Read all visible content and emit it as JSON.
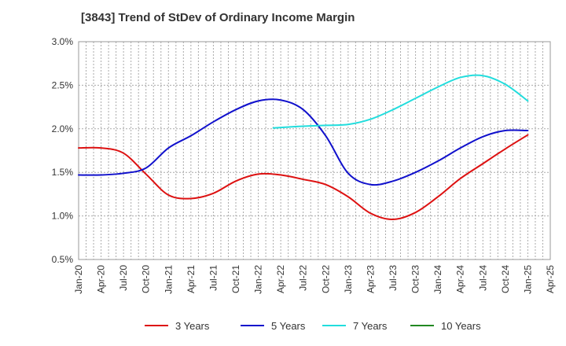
{
  "chart_data": {
    "type": "line",
    "title": "[3843]  Trend of StDev of Ordinary Income Margin",
    "xlabel": "",
    "ylabel": "",
    "x_ticks": [
      "Jan-20",
      "Apr-20",
      "Jul-20",
      "Oct-20",
      "Jan-21",
      "Apr-21",
      "Jul-21",
      "Oct-21",
      "Jan-22",
      "Apr-22",
      "Jul-22",
      "Oct-22",
      "Jan-23",
      "Apr-23",
      "Jul-23",
      "Oct-23",
      "Jan-24",
      "Apr-24",
      "Jul-24",
      "Oct-24",
      "Jan-25",
      "Apr-25"
    ],
    "y_ticks": [
      "0.5%",
      "1.0%",
      "1.5%",
      "2.0%",
      "2.5%",
      "3.0%"
    ],
    "ylim": [
      0.5,
      3.0
    ],
    "grid": true,
    "legend_position": "bottom",
    "series": [
      {
        "name": "3 Years",
        "color": "#dd1111",
        "x": [
          "Jan-20",
          "Apr-20",
          "Jul-20",
          "Oct-20",
          "Jan-21",
          "Apr-21",
          "Jul-21",
          "Oct-21",
          "Jan-22",
          "Apr-22",
          "Jul-22",
          "Oct-22",
          "Jan-23",
          "Apr-23",
          "Jul-23",
          "Oct-23",
          "Jan-24",
          "Apr-24",
          "Jul-24",
          "Oct-24",
          "Jan-25"
        ],
        "values": [
          1.78,
          1.78,
          1.72,
          1.48,
          1.24,
          1.2,
          1.26,
          1.4,
          1.48,
          1.47,
          1.42,
          1.36,
          1.22,
          1.03,
          0.96,
          1.04,
          1.22,
          1.43,
          1.6,
          1.77,
          1.93
        ]
      },
      {
        "name": "5 Years",
        "color": "#1111cc",
        "x": [
          "Jan-20",
          "Apr-20",
          "Jul-20",
          "Oct-20",
          "Jan-21",
          "Apr-21",
          "Jul-21",
          "Oct-21",
          "Jan-22",
          "Apr-22",
          "Jul-22",
          "Oct-22",
          "Jan-23",
          "Apr-23",
          "Jul-23",
          "Oct-23",
          "Jan-24",
          "Apr-24",
          "Jul-24",
          "Oct-24",
          "Jan-25"
        ],
        "values": [
          1.47,
          1.47,
          1.49,
          1.55,
          1.78,
          1.92,
          2.08,
          2.22,
          2.32,
          2.33,
          2.22,
          1.92,
          1.49,
          1.36,
          1.4,
          1.5,
          1.63,
          1.78,
          1.91,
          1.98,
          1.98
        ]
      },
      {
        "name": "7 Years",
        "color": "#22dddd",
        "x": [
          "Mar-22",
          "Jul-22",
          "Oct-22",
          "Jan-23",
          "Apr-23",
          "Jul-23",
          "Oct-23",
          "Jan-24",
          "Apr-24",
          "Jul-24",
          "Oct-24",
          "Jan-25"
        ],
        "values": [
          2.01,
          2.03,
          2.04,
          2.05,
          2.11,
          2.22,
          2.35,
          2.48,
          2.59,
          2.61,
          2.51,
          2.32
        ]
      },
      {
        "name": "10 Years",
        "color": "#228822",
        "x": [],
        "values": []
      }
    ]
  }
}
